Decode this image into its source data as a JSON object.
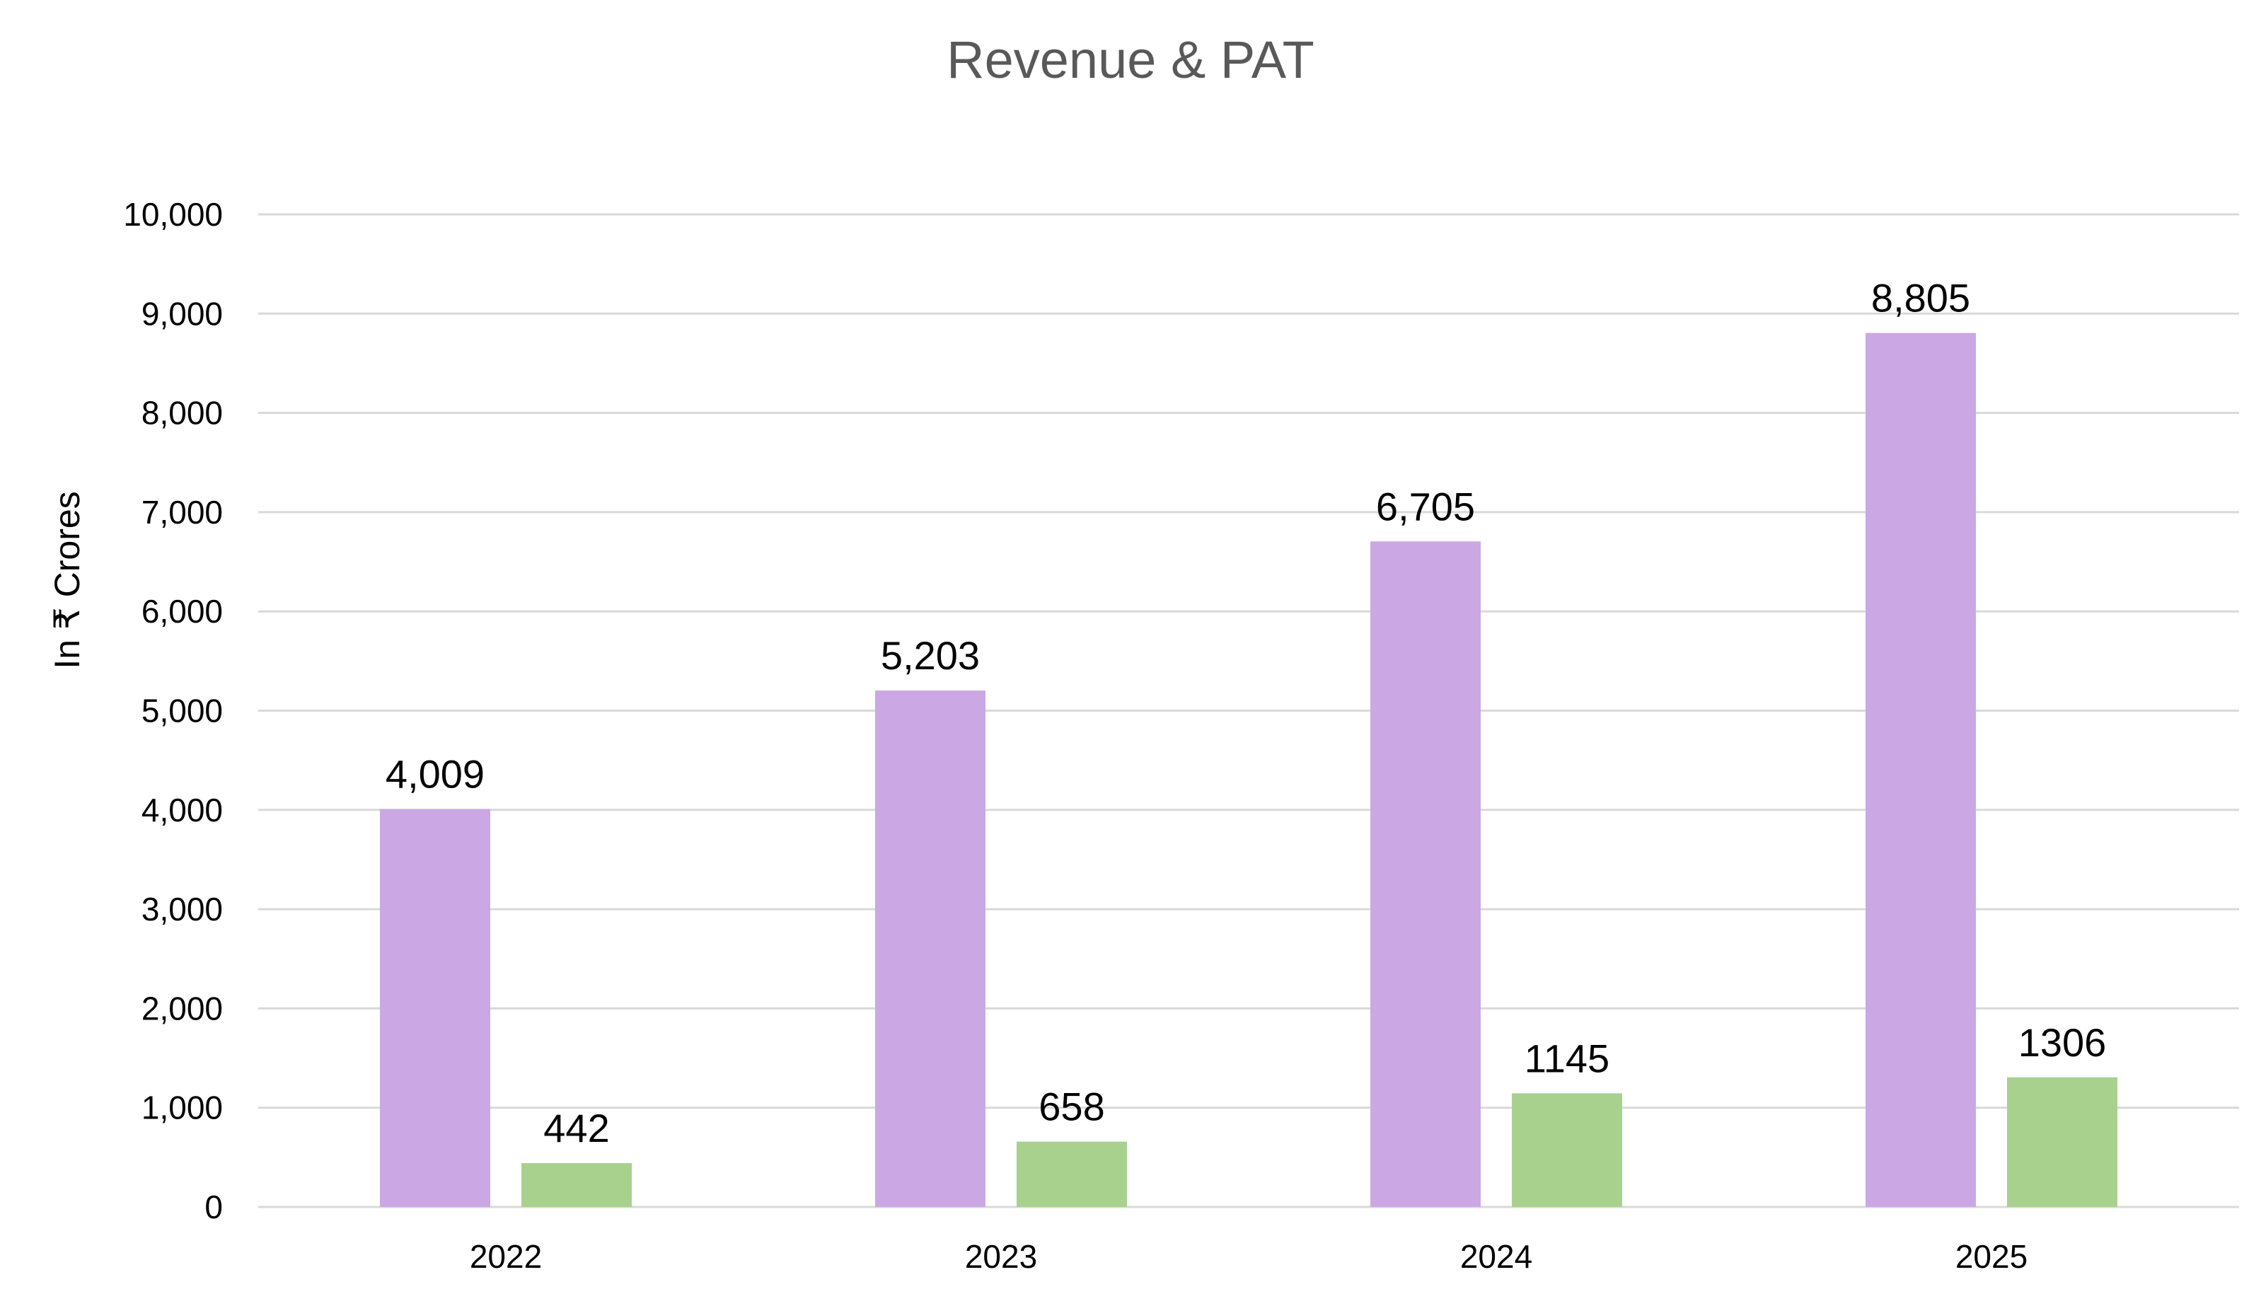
{
  "chart_data": {
    "type": "bar",
    "title": "Revenue & PAT",
    "xlabel": "",
    "ylabel": "In ₹ Crores",
    "categories": [
      "2022",
      "2023",
      "2024",
      "2025"
    ],
    "ylim": [
      0,
      10000
    ],
    "yticks": [
      0,
      1000,
      2000,
      3000,
      4000,
      5000,
      6000,
      7000,
      8000,
      9000,
      10000
    ],
    "ytick_labels": [
      "0",
      "1,000",
      "2,000",
      "3,000",
      "4,000",
      "5,000",
      "6,000",
      "7,000",
      "8,000",
      "9,000",
      "10,000"
    ],
    "grid": true,
    "legend": "none",
    "series": [
      {
        "values": [
          4009,
          5203,
          6705,
          8805
        ],
        "labels": [
          "4,009",
          "5,203",
          "6,705",
          "8,805"
        ],
        "color": "#CBA8E3"
      },
      {
        "values": [
          442,
          658,
          1145,
          1306
        ],
        "labels": [
          "442",
          "658",
          "1145",
          "1306"
        ],
        "color": "#A9D18E"
      }
    ]
  }
}
